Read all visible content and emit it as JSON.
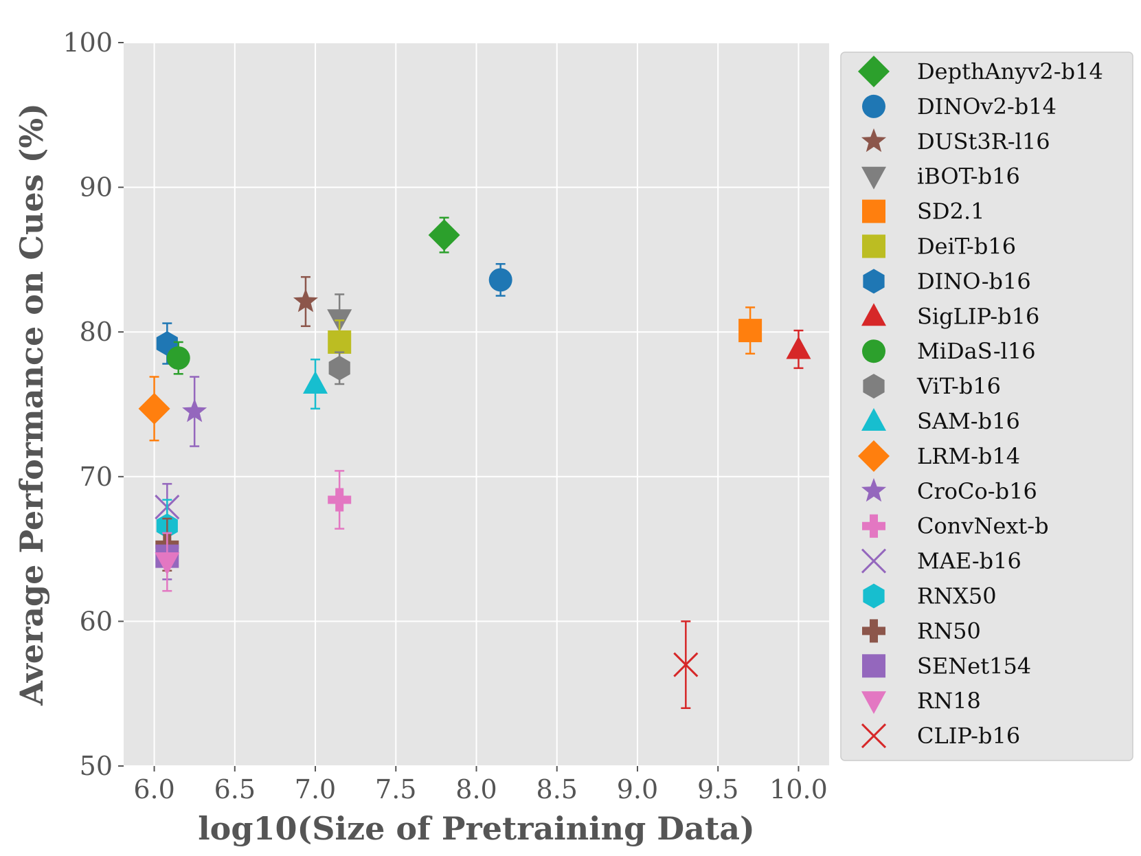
{
  "chart_data": {
    "type": "scatter",
    "title": "",
    "xlabel": "log10(Size of Pretraining Data)",
    "ylabel": "Average Performance on Cues (%)",
    "xlim": [
      5.81,
      10.19
    ],
    "ylim": [
      50,
      100
    ],
    "xticks": [
      6.0,
      6.5,
      7.0,
      7.5,
      8.0,
      8.5,
      9.0,
      9.5,
      10.0
    ],
    "xtick_labels": [
      "6.0",
      "6.5",
      "7.0",
      "7.5",
      "8.0",
      "8.5",
      "9.0",
      "9.5",
      "10.0"
    ],
    "yticks": [
      50,
      60,
      70,
      80,
      90,
      100
    ],
    "ytick_labels": [
      "50",
      "60",
      "70",
      "80",
      "90",
      "100"
    ],
    "grid": true,
    "legend_position": "outside-right",
    "series": [
      {
        "name": "DepthAnyv2-b14",
        "marker": "diamond",
        "color": "#2ca02c",
        "x": 7.8,
        "y": 86.7,
        "err": 1.2
      },
      {
        "name": "DINOv2-b14",
        "marker": "circle",
        "color": "#1f77b4",
        "x": 8.15,
        "y": 83.6,
        "err": 1.1
      },
      {
        "name": "DUSt3R-l16",
        "marker": "star",
        "color": "#8c564b",
        "x": 6.94,
        "y": 82.1,
        "err": 1.7
      },
      {
        "name": "iBOT-b16",
        "marker": "triangle-down",
        "color": "#7f7f7f",
        "x": 7.15,
        "y": 80.9,
        "err": 1.7
      },
      {
        "name": "SD2.1",
        "marker": "square",
        "color": "#ff7f0e",
        "x": 9.7,
        "y": 80.1,
        "err": 1.6
      },
      {
        "name": "DeiT-b16",
        "marker": "square",
        "color": "#bcbd22",
        "x": 7.15,
        "y": 79.3,
        "err": 1.5
      },
      {
        "name": "DINO-b16",
        "marker": "hexagon",
        "color": "#1f77b4",
        "x": 6.08,
        "y": 79.2,
        "err": 1.4
      },
      {
        "name": "SigLIP-b16",
        "marker": "triangle-up",
        "color": "#d62728",
        "x": 10.0,
        "y": 78.8,
        "err": 1.3
      },
      {
        "name": "MiDaS-l16",
        "marker": "circle",
        "color": "#2ca02c",
        "x": 6.15,
        "y": 78.2,
        "err": 1.1
      },
      {
        "name": "ViT-b16",
        "marker": "hexagon",
        "color": "#7f7f7f",
        "x": 7.15,
        "y": 77.5,
        "err": 1.1
      },
      {
        "name": "SAM-b16",
        "marker": "triangle-up",
        "color": "#17becf",
        "x": 7.0,
        "y": 76.4,
        "err": 1.7
      },
      {
        "name": "LRM-b14",
        "marker": "diamond",
        "color": "#ff7f0e",
        "x": 6.0,
        "y": 74.7,
        "err": 2.2
      },
      {
        "name": "CroCo-b16",
        "marker": "star",
        "color": "#9467bd",
        "x": 6.25,
        "y": 74.5,
        "err": 2.4
      },
      {
        "name": "ConvNext-b",
        "marker": "plus",
        "color": "#e377c2",
        "x": 7.15,
        "y": 68.4,
        "err": 2.0
      },
      {
        "name": "MAE-b16",
        "marker": "x",
        "color": "#9467bd",
        "x": 6.08,
        "y": 67.9,
        "err": 1.6
      },
      {
        "name": "RNX50",
        "marker": "hexagon",
        "color": "#17becf",
        "x": 6.08,
        "y": 66.6,
        "err": 1.8
      },
      {
        "name": "RN50",
        "marker": "plus",
        "color": "#8c564b",
        "x": 6.08,
        "y": 65.3,
        "err": 1.8
      },
      {
        "name": "SENet154",
        "marker": "square",
        "color": "#9467bd",
        "x": 6.08,
        "y": 64.5,
        "err": 1.6
      },
      {
        "name": "RN18",
        "marker": "triangle-down",
        "color": "#e377c2",
        "x": 6.08,
        "y": 64.1,
        "err": 2.0
      },
      {
        "name": "CLIP-b16",
        "marker": "x",
        "color": "#d62728",
        "x": 9.3,
        "y": 57.0,
        "err": 3.0
      }
    ]
  }
}
